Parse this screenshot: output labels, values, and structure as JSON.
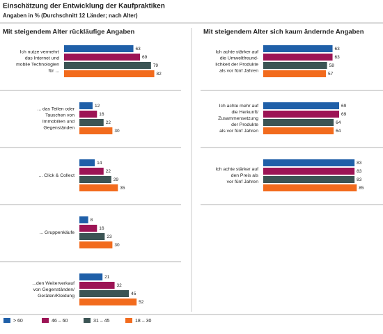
{
  "chart_data": {
    "type": "bar",
    "title": "Einschätzung der Entwicklung der Kaufpraktiken",
    "subtitle": "Angaben in % (Durchschnitt 12 Länder; nach Alter)",
    "legend": [
      {
        "name": "> 60",
        "color": "#1f5fa8"
      },
      {
        "name": "46 – 60",
        "color": "#9c1455"
      },
      {
        "name": "31 – 45",
        "color": "#3b5454"
      },
      {
        "name": "18 – 30",
        "color": "#f26b1d"
      }
    ],
    "panels": [
      {
        "title": "Mit steigendem Alter rückläufige Angaben",
        "categories": [
          [
            "Ich nutze vermehrt",
            "das Internet und",
            "mobile Technologien",
            "für ..."
          ],
          [
            "... das Teilen oder",
            "Tauschen von",
            "Immobilien und",
            "Gegenständen"
          ],
          [
            "... Click & Collect"
          ],
          [
            "... Gruppenkäufe"
          ],
          [
            "...den Weiterverkauf",
            "von Gegenständen/",
            "Geräten/Kleidung"
          ]
        ],
        "series": [
          {
            "values": [
              63,
              12,
              14,
              8,
              21
            ]
          },
          {
            "values": [
              69,
              16,
              22,
              16,
              32
            ]
          },
          {
            "values": [
              79,
              22,
              29,
              23,
              45
            ]
          },
          {
            "values": [
              82,
              30,
              35,
              30,
              52
            ]
          }
        ]
      },
      {
        "title": "Mit steigendem Alter sich kaum ändernde Angaben",
        "categories": [
          [
            "Ich achte stärker auf",
            "die Umweltfreund-",
            "lichkeit der Produkte",
            "als vor fünf Jahren"
          ],
          [
            "Ich achte mehr auf",
            "die Herkunft/",
            "Zusammensetzung",
            "der Produkte",
            "als vor fünf Jahren"
          ],
          [
            "Ich achte stärker auf",
            "den Preis als",
            "vor fünf Jahren"
          ]
        ],
        "series": [
          {
            "values": [
              63,
              69,
              83
            ]
          },
          {
            "values": [
              63,
              69,
              83
            ]
          },
          {
            "values": [
              58,
              64,
              83
            ]
          },
          {
            "values": [
              57,
              64,
              85
            ]
          }
        ]
      }
    ]
  }
}
